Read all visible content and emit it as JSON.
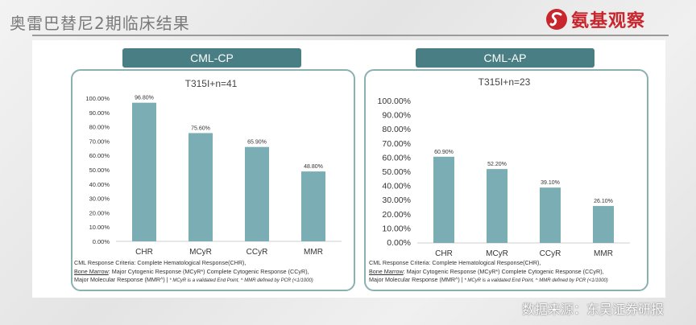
{
  "header": {
    "title": "奥雷巴替尼2期临床结果",
    "logo_text": "氨基观察",
    "logo_icon": "s-swirl-logo",
    "accent": "#c8262c"
  },
  "footer": {
    "source": "数据来源：东吴证券研报",
    "watermark": "知乎社区 @氨基观察"
  },
  "colors": {
    "bar": "#7aaeb4",
    "tag": "#487e84",
    "border": "#8ab0b2"
  },
  "panels": [
    {
      "tag": "CML-CP",
      "notes": {
        "line1": "CML Response Criteria: Complete Hematological Response(CHR),",
        "line2_u": "Bone Marrow",
        "line2": ": Major Cytogenic Response (MCyR*) Complete Cytogenic Response (CCyR),",
        "line3": "Major Molecular Response (MMR^) |",
        "line3_small": " * MCyR is a validated End Point, ^ MMR defined by PCR (<1/1000)"
      }
    },
    {
      "tag": "CML-AP",
      "notes": {
        "line1": "CML Response Criteria: Complete Hematological Response(CHR),",
        "line2_u": "Bone Marrow",
        "line2": ": Major Cytogenic Response (MCyR*) Complete Cytogenic Response (CCyR),",
        "line3": "Major Molecular Response (MMR^) |",
        "line3_small": " * MCyR is a validated End Point, ^ MMR defined by PCR (<1/1000)"
      }
    }
  ],
  "chart_data": [
    {
      "type": "bar",
      "title": "T315I+n=41",
      "categories": [
        "CHR",
        "MCyR",
        "CCyR",
        "MMR"
      ],
      "values": [
        96.8,
        75.6,
        65.9,
        48.8
      ],
      "data_labels": [
        "96.80%",
        "75.60%",
        "65.90%",
        "48.80%"
      ],
      "ylim": [
        0,
        100
      ],
      "yticks": [
        "0.00%",
        "10.00%",
        "20.00%",
        "30.00%",
        "40.00%",
        "50.00%",
        "60.00%",
        "70.00%",
        "80.00%",
        "90.00%",
        "100.00%"
      ],
      "grid": false,
      "legend": "none"
    },
    {
      "type": "bar",
      "title": "T315I+n=23",
      "categories": [
        "CHR",
        "MCyR",
        "CCyR",
        "MMR"
      ],
      "values": [
        60.9,
        52.2,
        39.1,
        26.1
      ],
      "data_labels": [
        "60.90%",
        "52.20%",
        "39.10%",
        "26.10%"
      ],
      "ylim": [
        0,
        100
      ],
      "yticks": [
        "0.00%",
        "10.00%",
        "20.00%",
        "30.00%",
        "40.00%",
        "50.00%",
        "60.00%",
        "70.00%",
        "80.00%",
        "90.00%",
        "100.00%"
      ],
      "grid": false,
      "legend": "none"
    }
  ]
}
